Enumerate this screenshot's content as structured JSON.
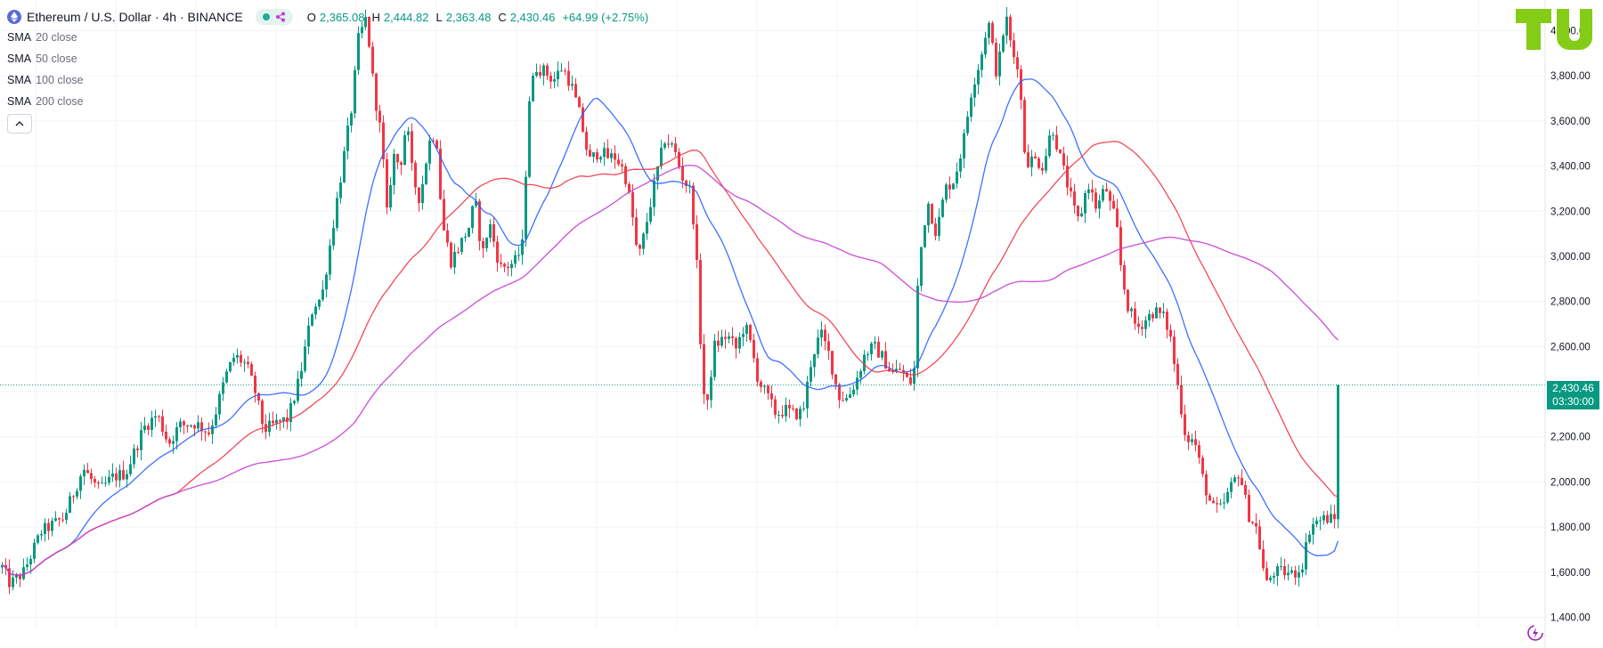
{
  "header": {
    "title": "Ethereum / U.S. Dollar · 4h · BINANCE",
    "ohlc": [
      {
        "k": "O",
        "v": "2,365.08"
      },
      {
        "k": "H",
        "v": "2,444.82"
      },
      {
        "k": "L",
        "v": "2,363.48"
      },
      {
        "k": "C",
        "v": "2,430.46"
      },
      {
        "k": "",
        "v": "+64.99 (+2.75%)"
      }
    ]
  },
  "indicators": [
    {
      "name": "SMA",
      "params": "20 close"
    },
    {
      "name": "SMA",
      "params": "50 close"
    },
    {
      "name": "SMA",
      "params": "100 close"
    },
    {
      "name": "SMA",
      "params": "200 close"
    }
  ],
  "price_label": {
    "price": "2,430.46",
    "countdown": "03:30:00"
  },
  "colors": {
    "up": "#089981",
    "down": "#f23645",
    "sma_fast": "#2962ff",
    "sma_mid": "#f23645",
    "sma_slow": "#c63ad3",
    "grid": "#f0f3fa",
    "logo": "#84cc16"
  },
  "icons": {
    "pair": "ethereum-icon",
    "share": "share-icon",
    "collapse": "chevron-up-icon",
    "replay": "replay-icon"
  },
  "chart_data": {
    "type": "candlestick",
    "y_axis_ticks": [
      "1,400.00",
      "1,600.00",
      "1,800.00",
      "2,000.00",
      "2,200.00",
      "2,400.00",
      "2,600.00",
      "2,800.00",
      "3,000.00",
      "3,200.00",
      "3,400.00",
      "3,600.00",
      "3,800.00",
      "4,000.00"
    ],
    "y_tick_values": [
      1400,
      1600,
      1800,
      2000,
      2200,
      2400,
      2600,
      2800,
      3000,
      3200,
      3400,
      3600,
      3800,
      4000
    ],
    "ylim": [
      1340,
      4150
    ],
    "current_price": 2430.46,
    "price_path": [
      [
        0,
        1630
      ],
      [
        10,
        1545
      ],
      [
        25,
        1600
      ],
      [
        45,
        1780
      ],
      [
        70,
        1840
      ],
      [
        92,
        2060
      ],
      [
        110,
        1960
      ],
      [
        125,
        2020
      ],
      [
        140,
        2040
      ],
      [
        160,
        2240
      ],
      [
        175,
        2300
      ],
      [
        188,
        2170
      ],
      [
        200,
        2250
      ],
      [
        218,
        2260
      ],
      [
        233,
        2220
      ],
      [
        240,
        2300
      ],
      [
        252,
        2470
      ],
      [
        262,
        2560
      ],
      [
        275,
        2520
      ],
      [
        285,
        2400
      ],
      [
        295,
        2230
      ],
      [
        310,
        2260
      ],
      [
        322,
        2280
      ],
      [
        335,
        2460
      ],
      [
        350,
        2780
      ],
      [
        360,
        2820
      ],
      [
        375,
        3200
      ],
      [
        385,
        3450
      ],
      [
        395,
        3700
      ],
      [
        400,
        3950
      ],
      [
        410,
        4060
      ],
      [
        418,
        3750
      ],
      [
        428,
        3500
      ],
      [
        432,
        3150
      ],
      [
        440,
        3450
      ],
      [
        448,
        3400
      ],
      [
        455,
        3600
      ],
      [
        462,
        3350
      ],
      [
        470,
        3250
      ],
      [
        480,
        3500
      ],
      [
        488,
        3560
      ],
      [
        495,
        3150
      ],
      [
        505,
        2980
      ],
      [
        515,
        3050
      ],
      [
        525,
        3130
      ],
      [
        532,
        3250
      ],
      [
        540,
        3000
      ],
      [
        548,
        3150
      ],
      [
        560,
        2950
      ],
      [
        570,
        2960
      ],
      [
        578,
        2980
      ],
      [
        585,
        3050
      ],
      [
        593,
        3700
      ],
      [
        600,
        3840
      ],
      [
        610,
        3820
      ],
      [
        620,
        3780
      ],
      [
        630,
        3840
      ],
      [
        640,
        3760
      ],
      [
        650,
        3620
      ],
      [
        660,
        3420
      ],
      [
        672,
        3470
      ],
      [
        680,
        3440
      ],
      [
        690,
        3440
      ],
      [
        700,
        3370
      ],
      [
        708,
        3200
      ],
      [
        715,
        2980
      ],
      [
        722,
        3100
      ],
      [
        735,
        3350
      ],
      [
        745,
        3520
      ],
      [
        755,
        3480
      ],
      [
        765,
        3350
      ],
      [
        775,
        3280
      ],
      [
        782,
        2900
      ],
      [
        787,
        2450
      ],
      [
        792,
        2300
      ],
      [
        800,
        2600
      ],
      [
        815,
        2650
      ],
      [
        825,
        2590
      ],
      [
        835,
        2700
      ],
      [
        842,
        2600
      ],
      [
        850,
        2450
      ],
      [
        860,
        2380
      ],
      [
        870,
        2300
      ],
      [
        880,
        2320
      ],
      [
        890,
        2300
      ],
      [
        900,
        2310
      ],
      [
        910,
        2550
      ],
      [
        920,
        2660
      ],
      [
        930,
        2560
      ],
      [
        940,
        2380
      ],
      [
        950,
        2370
      ],
      [
        960,
        2450
      ],
      [
        970,
        2570
      ],
      [
        980,
        2600
      ],
      [
        990,
        2550
      ],
      [
        1000,
        2480
      ],
      [
        1010,
        2500
      ],
      [
        1020,
        2430
      ],
      [
        1025,
        2500
      ],
      [
        1030,
        2950
      ],
      [
        1040,
        3250
      ],
      [
        1050,
        3100
      ],
      [
        1060,
        3300
      ],
      [
        1070,
        3340
      ],
      [
        1080,
        3500
      ],
      [
        1090,
        3750
      ],
      [
        1100,
        3880
      ],
      [
        1108,
        4050
      ],
      [
        1118,
        3800
      ],
      [
        1128,
        4070
      ],
      [
        1135,
        3900
      ],
      [
        1142,
        3850
      ],
      [
        1150,
        3420
      ],
      [
        1160,
        3430
      ],
      [
        1170,
        3400
      ],
      [
        1180,
        3580
      ],
      [
        1188,
        3450
      ],
      [
        1195,
        3350
      ],
      [
        1205,
        3200
      ],
      [
        1210,
        3150
      ],
      [
        1220,
        3330
      ],
      [
        1230,
        3210
      ],
      [
        1240,
        3310
      ],
      [
        1245,
        3230
      ],
      [
        1252,
        3150
      ],
      [
        1258,
        2920
      ],
      [
        1265,
        2780
      ],
      [
        1275,
        2680
      ],
      [
        1285,
        2720
      ],
      [
        1295,
        2760
      ],
      [
        1305,
        2730
      ],
      [
        1312,
        2660
      ],
      [
        1320,
        2450
      ],
      [
        1330,
        2200
      ],
      [
        1340,
        2180
      ],
      [
        1350,
        2000
      ],
      [
        1360,
        1880
      ],
      [
        1370,
        1880
      ],
      [
        1380,
        1970
      ],
      [
        1390,
        2050
      ],
      [
        1400,
        1860
      ],
      [
        1410,
        1790
      ],
      [
        1420,
        1540
      ],
      [
        1428,
        1600
      ],
      [
        1440,
        1600
      ],
      [
        1450,
        1590
      ],
      [
        1460,
        1620
      ],
      [
        1470,
        1810
      ],
      [
        1480,
        1830
      ],
      [
        1490,
        1840
      ],
      [
        1498,
        1830
      ],
      [
        1503,
        1950
      ],
      [
        1505,
        2430
      ]
    ],
    "smas": [
      {
        "name": "SMA 20",
        "window": 20,
        "color": "#2962ff"
      },
      {
        "name": "SMA 50",
        "window": 50,
        "color": "#f23645"
      },
      {
        "name": "SMA 100",
        "window": 100,
        "color": "#c63ad3"
      }
    ]
  }
}
